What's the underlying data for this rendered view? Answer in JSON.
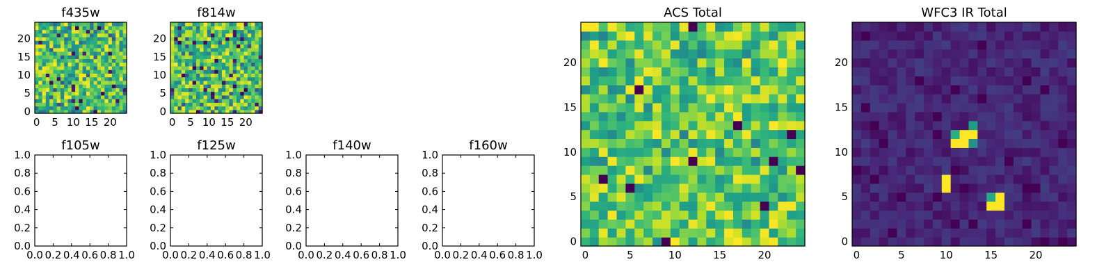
{
  "chart_data": [
    {
      "type": "heatmap",
      "title": "f435w",
      "xlim": [
        -0.5,
        24.5
      ],
      "ylim": [
        -0.5,
        24.5
      ],
      "xticks": [
        0,
        5,
        10,
        15,
        20
      ],
      "yticks": [
        0,
        5,
        10,
        15,
        20
      ],
      "grid_size": [
        25,
        25
      ],
      "colormap": "viridis",
      "values": "25x25 grid of random intensity values (0-1), not individually readable"
    },
    {
      "type": "heatmap",
      "title": "f814w",
      "xlim": [
        -0.5,
        24.5
      ],
      "ylim": [
        -0.5,
        24.5
      ],
      "xticks": [
        0,
        5,
        10,
        15,
        20
      ],
      "yticks": [
        0,
        5,
        10,
        15,
        20
      ],
      "grid_size": [
        25,
        25
      ],
      "colormap": "viridis",
      "values": "25x25 grid of random intensity values (0-1), not individually readable"
    },
    {
      "type": "empty",
      "title": "f105w",
      "xlim": [
        0,
        1
      ],
      "ylim": [
        0,
        1
      ],
      "xticks": [
        "0.0",
        "0.2",
        "0.4",
        "0.6",
        "0.8",
        "1.0"
      ],
      "yticks": [
        "0.0",
        "0.2",
        "0.4",
        "0.6",
        "0.8",
        "1.0"
      ]
    },
    {
      "type": "empty",
      "title": "f125w",
      "xlim": [
        0,
        1
      ],
      "ylim": [
        0,
        1
      ],
      "xticks": [
        "0.0",
        "0.2",
        "0.4",
        "0.6",
        "0.8",
        "1.0"
      ],
      "yticks": [
        "0.0",
        "0.2",
        "0.4",
        "0.6",
        "0.8",
        "1.0"
      ]
    },
    {
      "type": "empty",
      "title": "f140w",
      "xlim": [
        0,
        1
      ],
      "ylim": [
        0,
        1
      ],
      "xticks": [
        "0.0",
        "0.2",
        "0.4",
        "0.6",
        "0.8",
        "1.0"
      ],
      "yticks": [
        "0.0",
        "0.2",
        "0.4",
        "0.6",
        "0.8",
        "1.0"
      ]
    },
    {
      "type": "empty",
      "title": "f160w",
      "xlim": [
        0,
        1
      ],
      "ylim": [
        0,
        1
      ],
      "xticks": [
        "0.0",
        "0.2",
        "0.4",
        "0.6",
        "0.8",
        "1.0"
      ],
      "yticks": [
        "0.0",
        "0.2",
        "0.4",
        "0.6",
        "0.8",
        "1.0"
      ]
    },
    {
      "type": "heatmap",
      "title": "ACS Total",
      "xlim": [
        -0.5,
        24.5
      ],
      "ylim": [
        -0.5,
        24.5
      ],
      "xticks": [
        0,
        5,
        10,
        15,
        20
      ],
      "yticks": [
        0,
        5,
        10,
        15,
        20
      ],
      "grid_size": [
        25,
        25
      ],
      "colormap": "viridis",
      "values": "25x25 grid, mostly high values (green-yellow) with a few dark pixels"
    },
    {
      "type": "heatmap",
      "title": "WFC3 IR Total",
      "xlim": [
        -0.5,
        24.5
      ],
      "ylim": [
        -0.5,
        24.5
      ],
      "xticks": [
        0,
        5,
        10,
        15,
        20
      ],
      "yticks": [
        0,
        5,
        10,
        15,
        20
      ],
      "grid_size": [
        25,
        25
      ],
      "colormap": "viridis",
      "values": "25x25 grid, low background (purple) with bright sources",
      "bright_sources": [
        {
          "x": 11,
          "y": 11,
          "label": "bright"
        },
        {
          "x": 12,
          "y": 11,
          "label": "bright"
        },
        {
          "x": 12,
          "y": 12,
          "label": "bright"
        },
        {
          "x": 13,
          "y": 12,
          "label": "bright"
        },
        {
          "x": 10,
          "y": 6,
          "label": "bright"
        },
        {
          "x": 10,
          "y": 7,
          "label": "bright"
        },
        {
          "x": 15,
          "y": 4,
          "label": "bright"
        },
        {
          "x": 16,
          "y": 4,
          "label": "bright"
        },
        {
          "x": 16,
          "y": 5,
          "label": "bright"
        }
      ]
    }
  ]
}
